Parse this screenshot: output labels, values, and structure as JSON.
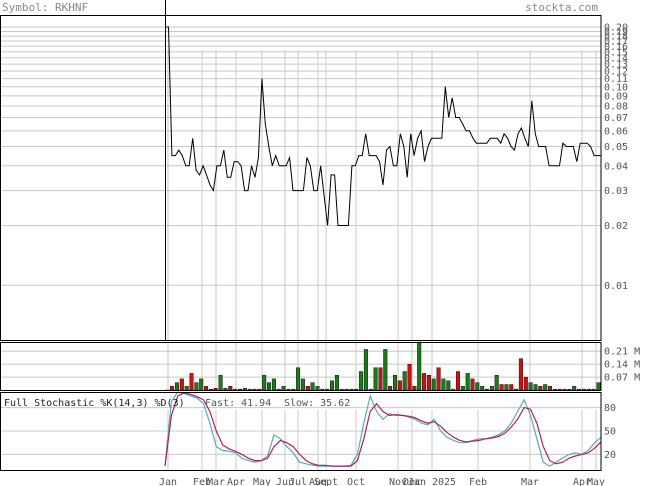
{
  "header": {
    "symbol": "Symbol: RKHNF",
    "site": "stockta.com"
  },
  "colors": {
    "grid": "#c8c8c8",
    "price": "#000000",
    "vol_up": "#1a7a1a",
    "vol_down": "#cc1111",
    "fast": "#5aaab4",
    "slow": "#b0205a",
    "fast_label": "#20a0a0",
    "slow_label": "#c03060"
  },
  "chart_data": [
    {
      "type": "line",
      "name": "price",
      "scale": "log",
      "ylim": [
        0.0053,
        0.23
      ],
      "ticks": [
        "0.20",
        "0.19",
        "0.18",
        "0.17",
        "0.16",
        "0.15",
        "0.14",
        "0.13",
        "0.12",
        "0.11",
        "0.10",
        "0.09",
        "0.08",
        "0.07",
        "0.06",
        "0.05",
        "0.04",
        "0.03",
        "0.02",
        "0.01"
      ],
      "tick_values": [
        0.2,
        0.19,
        0.18,
        0.17,
        0.16,
        0.15,
        0.14,
        0.13,
        0.12,
        0.11,
        0.1,
        0.09,
        0.08,
        0.07,
        0.06,
        0.05,
        0.04,
        0.03,
        0.02,
        0.01
      ],
      "x_labels": [
        "Jan",
        "Feb",
        "Mar",
        "Apr",
        "May",
        "Jun",
        "Jul",
        "Aug",
        "Sept",
        "Oct",
        "Nov",
        "Dec",
        "Jan 2025",
        "Feb",
        "Mar",
        "Apr",
        "May"
      ],
      "values": [
        0.2,
        0.2,
        0.045,
        0.045,
        0.048,
        0.045,
        0.04,
        0.04,
        0.055,
        0.038,
        0.036,
        0.04,
        0.036,
        0.032,
        0.03,
        0.04,
        0.04,
        0.048,
        0.035,
        0.035,
        0.042,
        0.042,
        0.04,
        0.03,
        0.03,
        0.04,
        0.035,
        0.044,
        0.11,
        0.065,
        0.05,
        0.04,
        0.045,
        0.04,
        0.04,
        0.04,
        0.044,
        0.03,
        0.03,
        0.03,
        0.03,
        0.044,
        0.04,
        0.03,
        0.03,
        0.04,
        0.028,
        0.02,
        0.036,
        0.036,
        0.02,
        0.02,
        0.02,
        0.02,
        0.04,
        0.04,
        0.045,
        0.045,
        0.058,
        0.045,
        0.045,
        0.045,
        0.042,
        0.032,
        0.048,
        0.05,
        0.04,
        0.04,
        0.058,
        0.05,
        0.035,
        0.058,
        0.045,
        0.055,
        0.06,
        0.042,
        0.05,
        0.055,
        0.055,
        0.055,
        0.055,
        0.1,
        0.07,
        0.088,
        0.07,
        0.07,
        0.065,
        0.06,
        0.06,
        0.055,
        0.052,
        0.052,
        0.052,
        0.052,
        0.055,
        0.055,
        0.055,
        0.052,
        0.058,
        0.055,
        0.05,
        0.048,
        0.058,
        0.062,
        0.055,
        0.05,
        0.085,
        0.058,
        0.05,
        0.05,
        0.05,
        0.04,
        0.04,
        0.04,
        0.04,
        0.052,
        0.05,
        0.05,
        0.05,
        0.042,
        0.052,
        0.052,
        0.052,
        0.05,
        0.045,
        0.045,
        0.045
      ]
    },
    {
      "type": "bar",
      "name": "volume",
      "ylim": [
        0,
        0.26
      ],
      "ticks": [
        "0.21 M",
        "0.14 M",
        "0.07 M"
      ],
      "tick_values": [
        0.21,
        0.14,
        0.07
      ],
      "values": [
        0,
        0.02,
        0.04,
        0.06,
        0.02,
        0.09,
        0.04,
        0.06,
        0.02,
        0.005,
        0.01,
        0.08,
        0.01,
        0.02,
        0.005,
        0.005,
        0.01,
        0.005,
        0.005,
        0.005,
        0.08,
        0.04,
        0.06,
        0.005,
        0.02,
        0.005,
        0.005,
        0.12,
        0.06,
        0.02,
        0.04,
        0.02,
        0.005,
        0.005,
        0.05,
        0.08,
        0.005,
        0.005,
        0.005,
        0.005,
        0.1,
        0.22,
        0.005,
        0.12,
        0.12,
        0.22,
        0.02,
        0.08,
        0.05,
        0.1,
        0.14,
        0.02,
        0.26,
        0.09,
        0.08,
        0.06,
        0.12,
        0.06,
        0.05,
        0.005,
        0.1,
        0.02,
        0.09,
        0.06,
        0.04,
        0.02,
        0.005,
        0.02,
        0.08,
        0.03,
        0.03,
        0.03,
        0.005,
        0.17,
        0.07,
        0.04,
        0.03,
        0.02,
        0.03,
        0.02,
        0.005,
        0.005,
        0.005,
        0.005,
        0.02,
        0.005,
        0.005,
        0.005,
        0.005,
        0.04
      ],
      "up": [
        1,
        0,
        1,
        0,
        1,
        0,
        1,
        1,
        0,
        1,
        0,
        1,
        1,
        0,
        1,
        0,
        1,
        0,
        1,
        0,
        1,
        1,
        1,
        0,
        1,
        0,
        1,
        1,
        1,
        0,
        1,
        1,
        0,
        1,
        1,
        1,
        0,
        1,
        0,
        1,
        1,
        1,
        1,
        1,
        0,
        1,
        0,
        1,
        0,
        1,
        0,
        0,
        1,
        0,
        0,
        1,
        0,
        1,
        1,
        0,
        0,
        1,
        1,
        0,
        1,
        1,
        0,
        1,
        1,
        0,
        1,
        0,
        1,
        0,
        0,
        1,
        1,
        0,
        1,
        0,
        0,
        1,
        1,
        0,
        1,
        0,
        1,
        0,
        1,
        1
      ]
    },
    {
      "type": "line",
      "name": "stochastic",
      "title": "Full Stochastic %K(14,3) %D(3)",
      "fast_label": "Fast: 41.94",
      "slow_label": "Slow: 35.62",
      "ylim": [
        0,
        100
      ],
      "ticks": [
        "80",
        "50",
        "20"
      ],
      "tick_values": [
        80,
        50,
        20
      ],
      "series": [
        {
          "values": [
            5,
            88,
            100,
            98,
            95,
            92,
            85,
            60,
            30,
            25,
            24,
            22,
            15,
            12,
            10,
            12,
            18,
            45,
            40,
            30,
            22,
            10,
            8,
            6,
            5,
            5,
            5,
            5,
            5,
            6,
            20,
            60,
            95,
            75,
            65,
            72,
            70,
            70,
            68,
            65,
            60,
            58,
            65,
            50,
            42,
            38,
            35,
            35,
            38,
            40,
            40,
            42,
            45,
            50,
            60,
            75,
            90,
            70,
            40,
            10,
            5,
            10,
            15,
            20,
            22,
            20,
            25,
            35,
            42
          ]
        },
        {
          "values": [
            5,
            70,
            95,
            99,
            97,
            94,
            90,
            75,
            50,
            32,
            27,
            24,
            20,
            15,
            12,
            12,
            15,
            30,
            38,
            35,
            30,
            20,
            12,
            8,
            6,
            6,
            5,
            5,
            5,
            5,
            12,
            40,
            75,
            85,
            75,
            70,
            71,
            70,
            69,
            67,
            63,
            60,
            62,
            56,
            48,
            42,
            38,
            36,
            37,
            38,
            40,
            41,
            43,
            47,
            55,
            65,
            80,
            78,
            60,
            30,
            12,
            8,
            10,
            15,
            18,
            20,
            22,
            28,
            36
          ]
        }
      ]
    }
  ]
}
